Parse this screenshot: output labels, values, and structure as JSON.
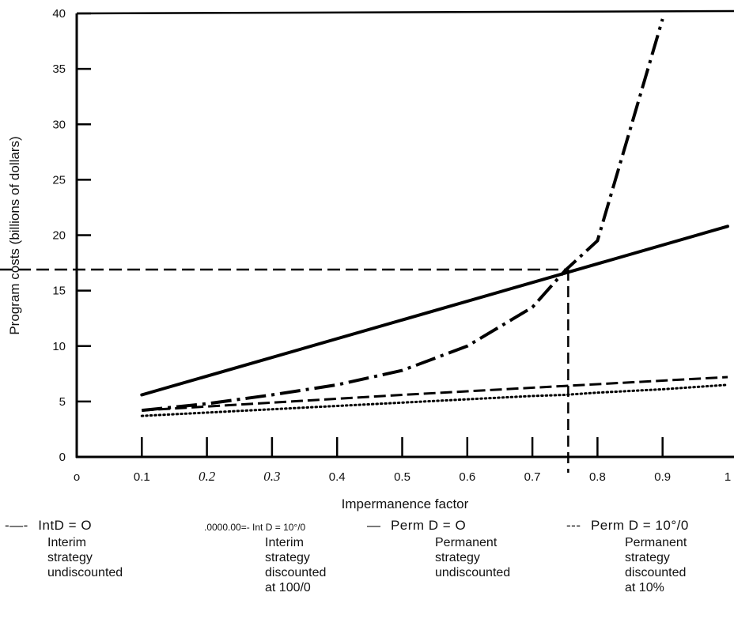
{
  "chart_data": {
    "type": "line",
    "title": "",
    "xlabel": "Impermanence factor",
    "ylabel": "Program costs (billions of dollars)",
    "xlim": [
      0,
      1
    ],
    "ylim": [
      0,
      40
    ],
    "x_tick_labels": [
      "o",
      "0.1",
      "0.2",
      "0.3",
      "0.4",
      "0.5",
      "0.6",
      "0.7",
      "0.8",
      "0.9",
      "1"
    ],
    "y_tick_labels": [
      "0",
      "5",
      "10",
      "15",
      "20",
      "25",
      "30",
      "35",
      "40"
    ],
    "grid": false,
    "series": [
      {
        "name": "IntD = O",
        "style": "long-dash-dot",
        "x": [
          0.1,
          0.2,
          0.3,
          0.4,
          0.5,
          0.6,
          0.7,
          0.75,
          0.8,
          0.9
        ],
        "y": [
          4.2,
          4.8,
          5.6,
          6.5,
          7.8,
          10.0,
          13.5,
          16.8,
          19.5,
          39.5
        ]
      },
      {
        "name": "Int D = 10°/0",
        "style": "dotted",
        "x": [
          0.1,
          0.2,
          0.3,
          0.4,
          0.5,
          0.6,
          0.7,
          0.75,
          0.8,
          0.9,
          1.0
        ],
        "y": [
          3.7,
          4.0,
          4.3,
          4.6,
          4.9,
          5.2,
          5.5,
          5.6,
          5.8,
          6.1,
          6.5
        ]
      },
      {
        "name": "Perm D = O",
        "style": "solid",
        "x": [
          0.1,
          1.0
        ],
        "y": [
          5.6,
          20.8
        ]
      },
      {
        "name": "Perm D = 10°/0",
        "style": "dashed",
        "x": [
          0.1,
          0.5,
          0.75,
          1.0
        ],
        "y": [
          4.2,
          5.6,
          6.4,
          7.2
        ]
      }
    ],
    "reference_lines": {
      "x": 0.755,
      "y": 16.9
    }
  },
  "legend": [
    {
      "marker": "-—-",
      "head": "IntD  =  O",
      "desc": "Interim\nstrategy\nundiscounted"
    },
    {
      "marker": "",
      "head": ".0000.00=- Int D = 10°/0",
      "desc": "Interim\nstrategy\ndiscounted\nat 100/0"
    },
    {
      "marker": "—",
      "head": "Perm  D  =  O",
      "desc": "Permanent\nstrategy\nundiscounted"
    },
    {
      "marker": "---",
      "head": "Perm  D  =  10°/0",
      "desc": "Permanent\nstrategy\ndiscounted\nat 10%"
    }
  ]
}
